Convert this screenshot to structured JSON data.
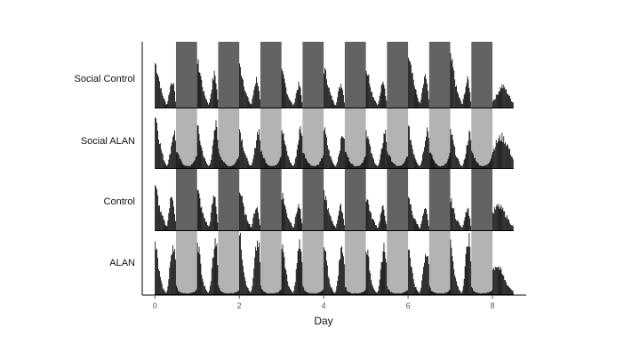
{
  "chart_data": {
    "type": "bar",
    "title": "",
    "xlabel": "Day",
    "ylabel": "",
    "xlim": [
      -0.3,
      8.8
    ],
    "xticks": [
      0,
      2,
      4,
      6,
      8
    ],
    "xtick_labels": [
      "0",
      "2",
      "4",
      "6",
      "8"
    ],
    "grid": false,
    "legend": "none",
    "dark_periods": [
      [
        0.5,
        1.0
      ],
      [
        1.5,
        2.0
      ],
      [
        2.5,
        3.0
      ],
      [
        3.5,
        4.0
      ],
      [
        4.5,
        5.0
      ],
      [
        5.5,
        6.0
      ],
      [
        6.5,
        7.0
      ],
      [
        7.5,
        8.0
      ]
    ],
    "bin_width_days": 0.02,
    "rows": [
      {
        "name": "Social Control",
        "night_shade": "#636363",
        "day_profile": [
          0.72,
          0.68,
          0.62,
          0.55,
          0.46,
          0.38,
          0.3,
          0.24,
          0.2,
          0.16,
          0.12,
          0.08,
          0.05
        ],
        "evening_profile": [
          0.06,
          0.12,
          0.18,
          0.26,
          0.34,
          0.4,
          0.44,
          0.48,
          0.45,
          0.36,
          0.24,
          0.12,
          0.05
        ],
        "day_peaks": [
          0.72,
          0.72,
          0.66,
          0.55,
          0.62,
          0.62,
          0.92,
          0.78
        ],
        "evening_peaks": [
          0.45,
          0.55,
          0.48,
          0.38,
          0.4,
          0.42,
          0.5,
          0.46
        ],
        "last_half_day": [
          0.12,
          0.18,
          0.28,
          0.36,
          0.32,
          0.24,
          0.14,
          0.08
        ]
      },
      {
        "name": "Social ALAN",
        "night_shade": "#b3b3b3",
        "day_profile": [
          0.98,
          0.9,
          0.78,
          0.66,
          0.54,
          0.44,
          0.36,
          0.28,
          0.22,
          0.16,
          0.12,
          0.08,
          0.06
        ],
        "evening_profile": [
          0.06,
          0.1,
          0.16,
          0.24,
          0.34,
          0.44,
          0.56,
          0.68,
          0.78,
          0.84,
          0.8,
          0.62,
          0.42
        ],
        "night_profile": [
          0.32,
          0.24,
          0.18,
          0.12,
          0.08,
          0.06,
          0.05,
          0.05,
          0.06,
          0.08,
          0.12,
          0.2,
          0.3
        ],
        "day_peaks": [
          0.98,
          0.72,
          0.7,
          0.7,
          0.7,
          0.68,
          0.7,
          0.66
        ],
        "evening_peaks": [
          0.66,
          0.78,
          0.7,
          0.72,
          0.62,
          0.66,
          0.72,
          0.62
        ],
        "last_half_day": [
          0.32,
          0.44,
          0.52,
          0.56,
          0.5,
          0.4,
          0.26,
          0.14
        ]
      },
      {
        "name": "Control",
        "night_shade": "#636363",
        "day_profile": [
          0.72,
          0.7,
          0.64,
          0.54,
          0.44,
          0.36,
          0.3,
          0.26,
          0.22,
          0.18,
          0.14,
          0.1,
          0.06
        ],
        "evening_profile": [
          0.06,
          0.12,
          0.2,
          0.28,
          0.36,
          0.42,
          0.46,
          0.48,
          0.44,
          0.34,
          0.22,
          0.12,
          0.06
        ],
        "day_peaks": [
          0.72,
          0.66,
          0.66,
          0.62,
          0.62,
          0.56,
          0.52,
          0.5
        ],
        "evening_peaks": [
          0.62,
          0.6,
          0.42,
          0.44,
          0.42,
          0.4,
          0.36,
          0.4
        ],
        "last_half_day": [
          0.3,
          0.4,
          0.42,
          0.38,
          0.3,
          0.22,
          0.12,
          0.06
        ]
      },
      {
        "name": "ALAN",
        "night_shade": "#b3b3b3",
        "day_profile": [
          0.84,
          0.78,
          0.66,
          0.52,
          0.4,
          0.3,
          0.22,
          0.16,
          0.12,
          0.08,
          0.06,
          0.04,
          0.03
        ],
        "evening_profile": [
          0.06,
          0.12,
          0.22,
          0.36,
          0.52,
          0.66,
          0.78,
          0.86,
          0.92,
          0.9,
          0.78,
          0.56,
          0.3
        ],
        "night_profile": [
          0.14,
          0.08,
          0.05,
          0.04,
          0.03,
          0.03,
          0.03,
          0.03,
          0.03,
          0.04,
          0.05,
          0.07,
          0.1
        ],
        "day_peaks": [
          0.84,
          0.88,
          0.98,
          0.9,
          0.78,
          0.82,
          0.8,
          0.86
        ],
        "evening_peaks": [
          0.86,
          0.88,
          0.88,
          0.84,
          0.8,
          0.8,
          0.76,
          0.92
        ],
        "last_half_day": [
          0.42,
          0.5,
          0.46,
          0.36,
          0.26,
          0.16,
          0.1,
          0.06
        ]
      }
    ]
  }
}
